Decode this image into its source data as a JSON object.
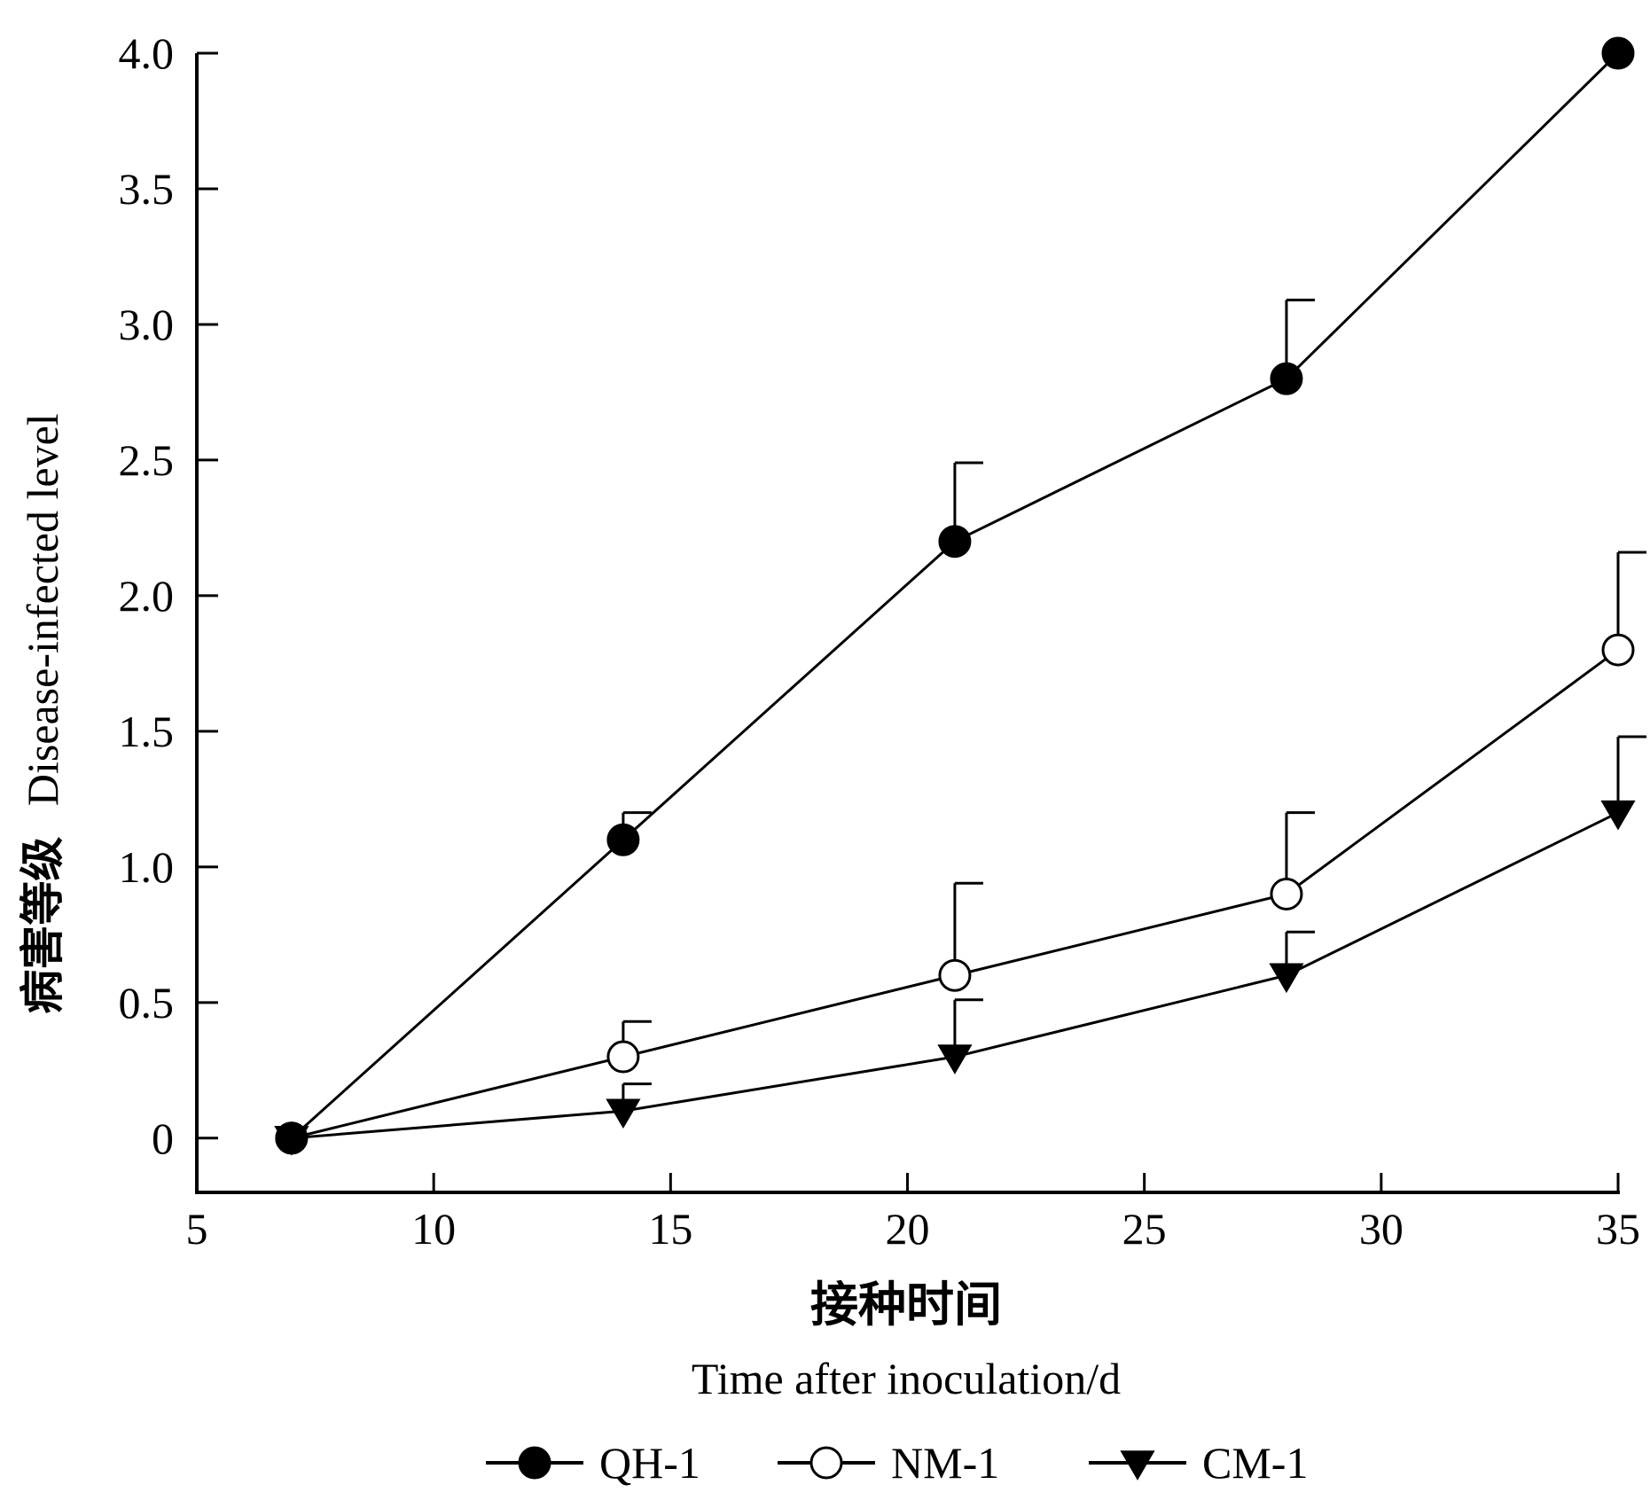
{
  "chart_data": {
    "type": "line",
    "xlabel_cn": "接种时间",
    "xlabel_en": "Time after inoculation/d",
    "ylabel_cn": "病害等级",
    "ylabel_en": "Disease-infected level",
    "xlim": [
      5,
      35
    ],
    "ylim": [
      -0.2,
      4.0
    ],
    "x_ticks": [
      5,
      10,
      15,
      20,
      25,
      30,
      35
    ],
    "x_tick_labels": [
      "5",
      "10",
      "15",
      "20",
      "25",
      "30",
      "35"
    ],
    "y_ticks": [
      0,
      0.5,
      1.0,
      1.5,
      2.0,
      2.5,
      3.0,
      3.5,
      4.0
    ],
    "y_tick_labels": [
      "0",
      "0.5",
      "1.0",
      "1.5",
      "2.0",
      "2.5",
      "3.0",
      "3.5",
      "4.0"
    ],
    "x": [
      7,
      14,
      21,
      28,
      35
    ],
    "series": [
      {
        "name": "QH-1",
        "marker": "filled-circle",
        "values": [
          0,
          1.1,
          2.2,
          2.8,
          4.0
        ],
        "errors": [
          0,
          0.1,
          0.29,
          0.29,
          0
        ]
      },
      {
        "name": "NM-1",
        "marker": "open-circle",
        "values": [
          0,
          0.3,
          0.6,
          0.9,
          1.8
        ],
        "errors": [
          0,
          0.13,
          0.34,
          0.3,
          0.36
        ]
      },
      {
        "name": "CM-1",
        "marker": "filled-triangle-down",
        "values": [
          0,
          0.1,
          0.3,
          0.6,
          1.2
        ],
        "errors": [
          0,
          0.1,
          0.21,
          0.16,
          0.28
        ]
      }
    ],
    "legend_position": "bottom",
    "grid": false,
    "colors": {
      "line": "#000000",
      "open_fill": "#ffffff"
    }
  }
}
